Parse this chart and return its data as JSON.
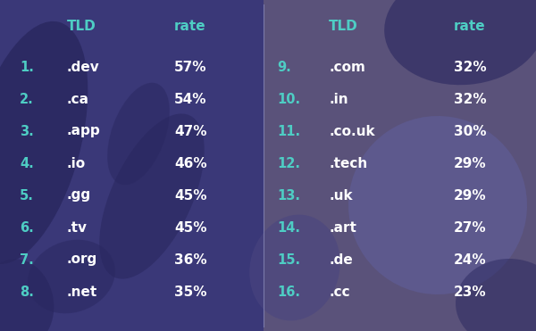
{
  "left_numbers": [
    "1.",
    "2.",
    "3.",
    "4.",
    "5.",
    "6.",
    "7.",
    "8."
  ],
  "left_tlds": [
    ".dev",
    ".ca",
    ".app",
    ".io",
    ".gg",
    ".tv",
    ".org",
    ".net"
  ],
  "left_rates": [
    "57%",
    "54%",
    "47%",
    "46%",
    "45%",
    "45%",
    "36%",
    "35%"
  ],
  "right_numbers": [
    "9.",
    "10.",
    "11.",
    "12.",
    "13.",
    "14.",
    "15.",
    "16."
  ],
  "right_tlds": [
    ".com",
    ".in",
    ".co.uk",
    ".tech",
    ".uk",
    ".art",
    ".de",
    ".cc"
  ],
  "right_rates": [
    "32%",
    "32%",
    "30%",
    "29%",
    "29%",
    "27%",
    "24%",
    "23%"
  ],
  "header_tld": "TLD",
  "header_rate": "rate",
  "bg_left": "#3a3878",
  "bg_right": "#5a527a",
  "blob_dark": "#2a2860",
  "blob_purple": "#4a4070",
  "accent_teal": "#4ecdc4",
  "text_white": "#ffffff",
  "divider_color": "#8080b0",
  "fig_width": 6.0,
  "fig_height": 3.71,
  "dpi": 100
}
